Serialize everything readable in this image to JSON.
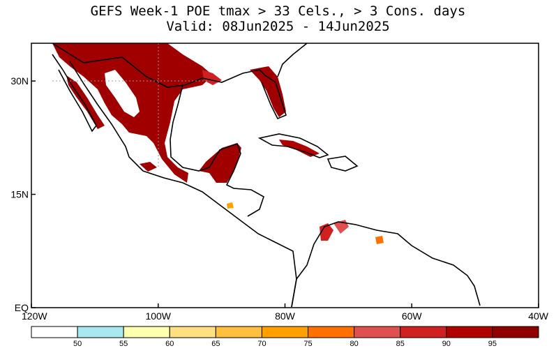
{
  "title": {
    "line1": "GEFS Week-1 POE tmax > 33 Cels., > 3 Cons. days",
    "line2": "Valid: 08Jun2025 - 14Jun2025"
  },
  "map": {
    "lon_range": [
      -120,
      -40
    ],
    "lat_range": [
      0,
      35
    ],
    "lon_ticks": [
      {
        "value": -120,
        "label": "120W"
      },
      {
        "value": -100,
        "label": "100W"
      },
      {
        "value": -80,
        "label": "80W"
      },
      {
        "value": -60,
        "label": "60W"
      },
      {
        "value": -40,
        "label": "40W"
      }
    ],
    "lat_ticks": [
      {
        "value": 0,
        "label": "EQ"
      },
      {
        "value": 15,
        "label": "15N"
      },
      {
        "value": 30,
        "label": "30N"
      }
    ]
  },
  "colorbar": {
    "bins": [
      {
        "color": "#ffffff"
      },
      {
        "color": "#a8e8f0"
      },
      {
        "color": "#ffffb0"
      },
      {
        "color": "#ffe080"
      },
      {
        "color": "#ffc040"
      },
      {
        "color": "#ffa000"
      },
      {
        "color": "#ff7000"
      },
      {
        "color": "#e05050"
      },
      {
        "color": "#d02020"
      },
      {
        "color": "#b00000"
      },
      {
        "color": "#900000"
      }
    ],
    "labels": [
      "50",
      "55",
      "60",
      "65",
      "70",
      "75",
      "80",
      "85",
      "90",
      "95"
    ]
  }
}
